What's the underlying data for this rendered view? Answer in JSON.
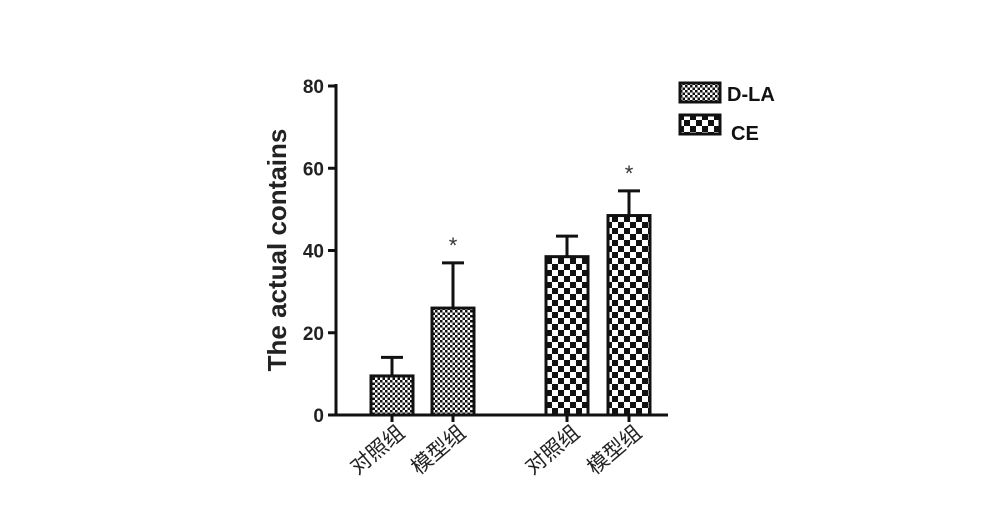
{
  "chart_data": {
    "type": "bar",
    "title": "",
    "ylabel": "The actual  contains",
    "xlabel": "",
    "ylim": [
      0,
      80
    ],
    "yticks": [
      "0",
      "20",
      "40",
      "60",
      "80"
    ],
    "grid": false,
    "legend_position": "top-right",
    "series": [
      {
        "name": "D-LA",
        "pattern": "fine-checker",
        "categories": [
          "对照组",
          "模型组"
        ],
        "values": [
          9.5,
          26
        ],
        "errors": [
          4.5,
          11
        ],
        "significance": [
          "",
          "*"
        ]
      },
      {
        "name": "CE",
        "pattern": "coarse-checker",
        "categories": [
          "对照组",
          "模型组"
        ],
        "values": [
          38.5,
          48.5
        ],
        "errors": [
          5,
          6
        ],
        "significance": [
          "",
          "*"
        ]
      }
    ],
    "colors": {
      "ink": "#111111",
      "fill": "#ffffff"
    }
  }
}
